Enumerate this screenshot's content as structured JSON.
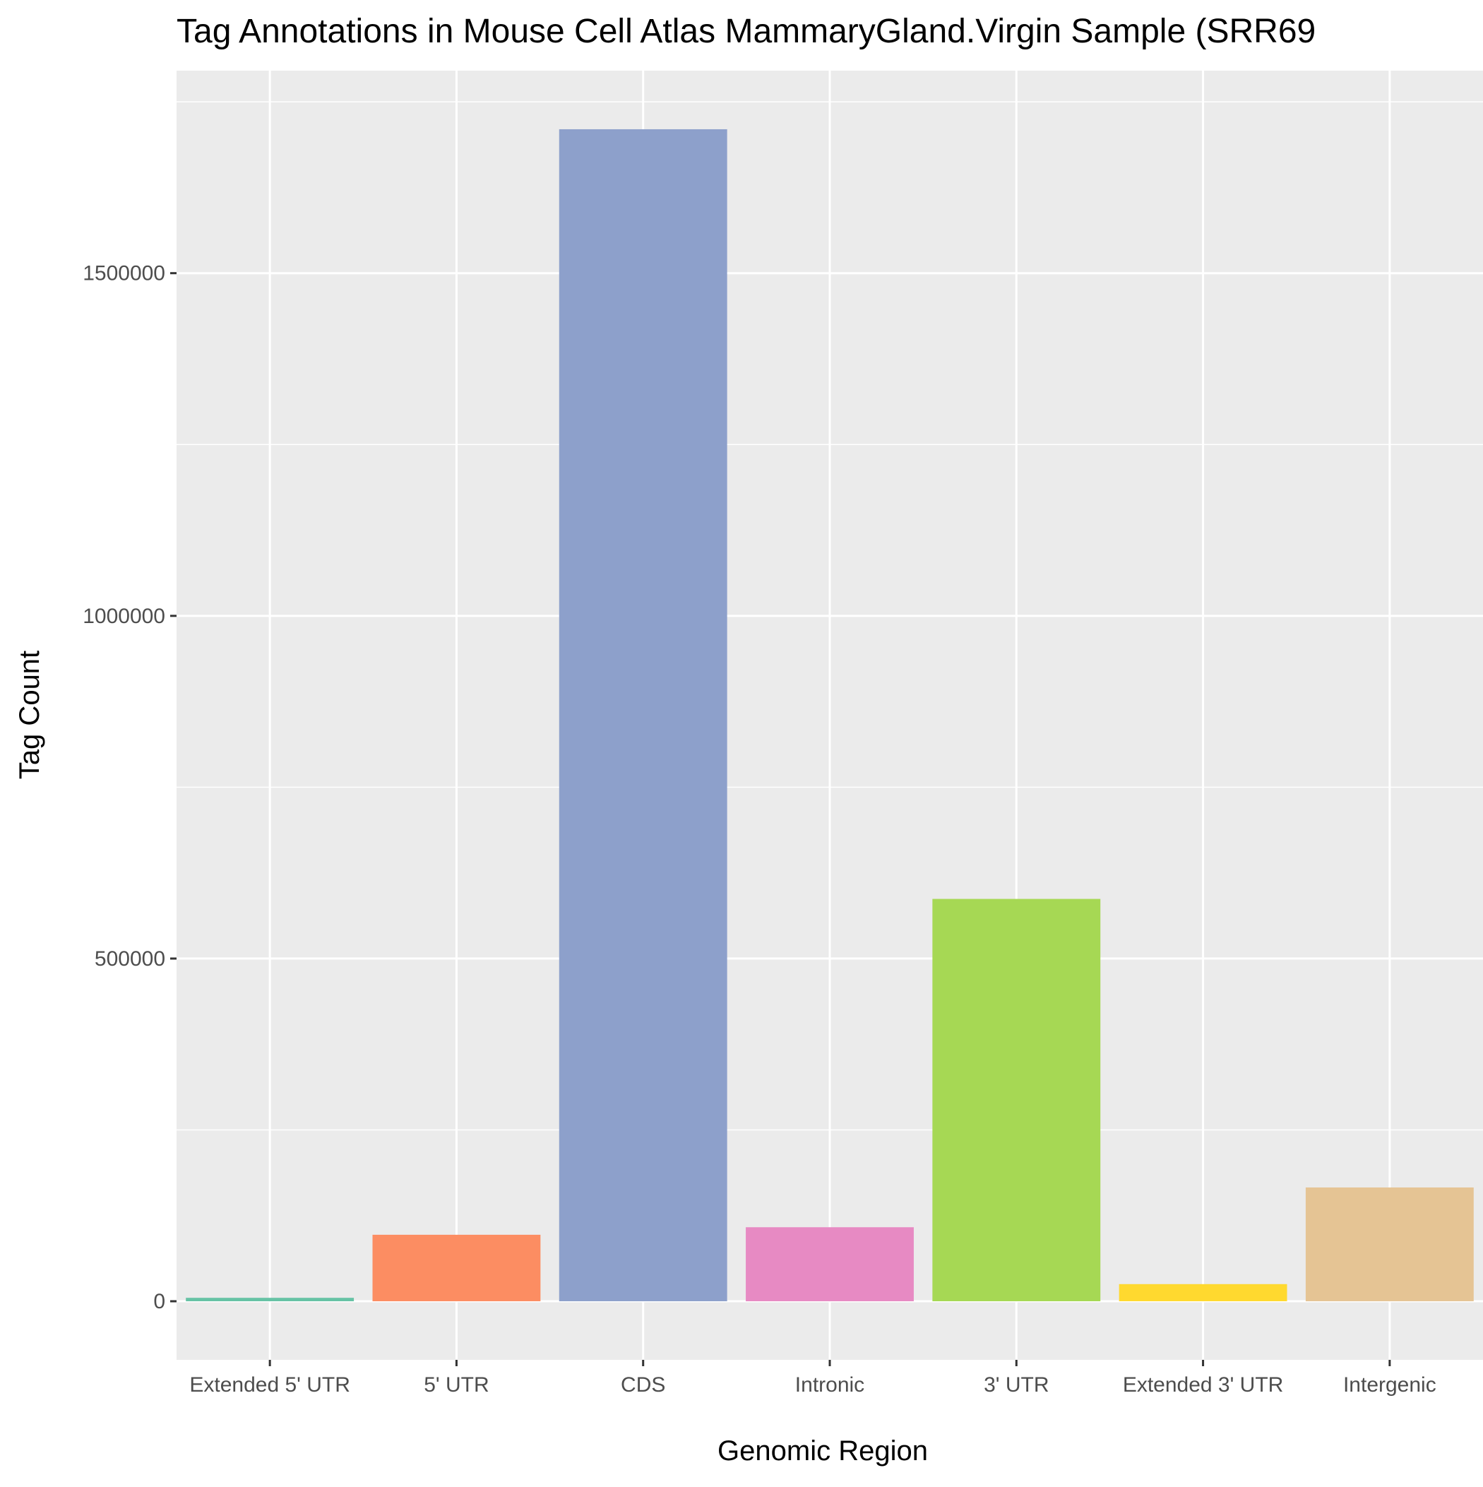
{
  "chart_data": {
    "type": "bar",
    "title": "Tag Annotations in Mouse Cell Atlas MammaryGland.Virgin Sample (SRR69",
    "xlabel": "Genomic Region",
    "ylabel": "Tag Count",
    "categories": [
      "Extended 5' UTR",
      "5' UTR",
      "CDS",
      "Intronic",
      "3' UTR",
      "Extended 3' UTR",
      "Intergenic"
    ],
    "values": [
      5000,
      97000,
      1710000,
      108000,
      587000,
      25000,
      166000
    ],
    "colors": [
      "#66c2a5",
      "#fc8d62",
      "#8da0cb",
      "#e78ac3",
      "#a6d854",
      "#ffd92f",
      "#e5c494"
    ],
    "yticks": [
      0,
      500000,
      1000000,
      1500000
    ],
    "ytick_labels": [
      "0",
      "500000",
      "1000000",
      "1500000"
    ],
    "ylim": [
      -85500,
      1795500
    ],
    "grid": true,
    "legend": "none",
    "panel_color": "#ebebeb",
    "grid_color": "#ffffff"
  }
}
